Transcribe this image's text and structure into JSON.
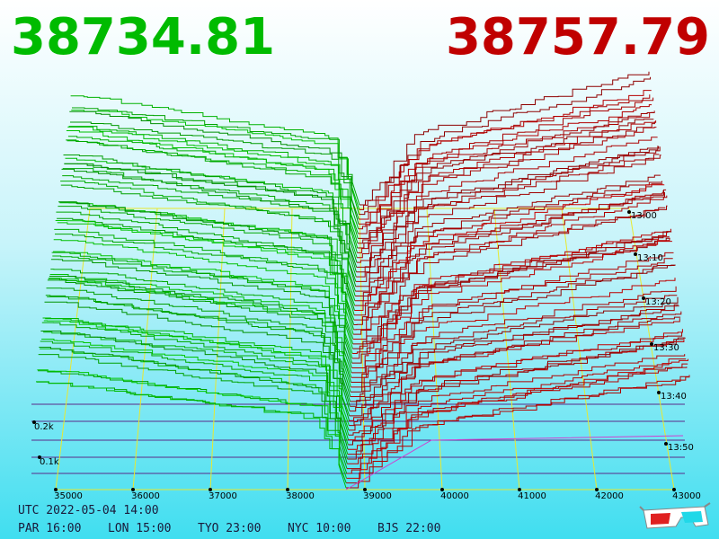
{
  "quote": {
    "bid": "38734.81",
    "ask": "38757.79"
  },
  "axis": {
    "price_labels": [
      "35000",
      "36000",
      "37000",
      "38000",
      "39000",
      "40000",
      "41000",
      "42000",
      "43000"
    ],
    "time_labels": [
      "13:00",
      "13:10",
      "13:20",
      "13:30",
      "13:40",
      "13:50"
    ],
    "depth_labels": [
      "0.2k",
      "0.1k"
    ]
  },
  "footer": {
    "utc": "UTC 2022-05-04 14:00",
    "zones": [
      "PAR 16:00",
      "LON 15:00",
      "TYO 23:00",
      "NYC 10:00",
      "BJS 22:00"
    ]
  }
}
